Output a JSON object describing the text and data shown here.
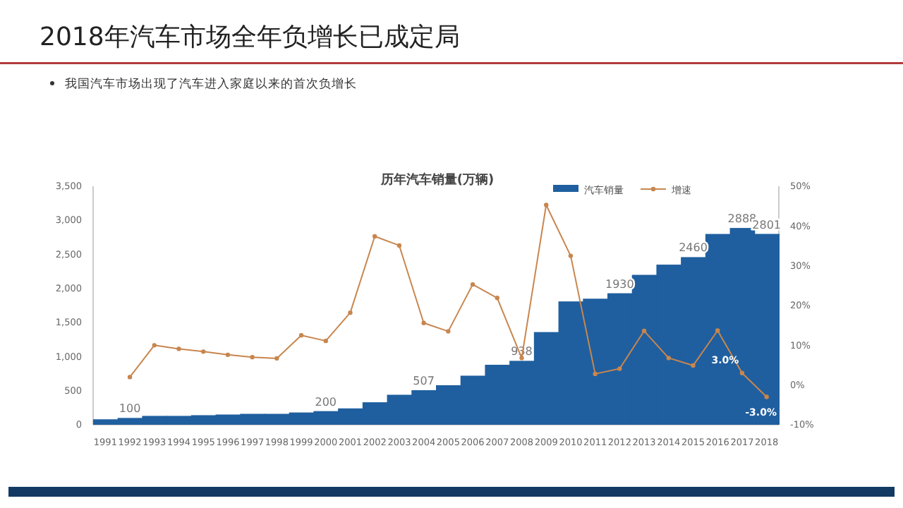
{
  "chart_data": {
    "type": "bar",
    "title": "2018年汽车市场全年负增长已成定局",
    "subtitle": "我国汽车市场出现了汽车进入家庭以来的首次负增长",
    "annotations": [
      "历年汽车销量(万辆)"
    ],
    "categories": [
      "1991",
      "1992",
      "1993",
      "1994",
      "1995",
      "1996",
      "1997",
      "1998",
      "1999",
      "2000",
      "2001",
      "2002",
      "2003",
      "2004",
      "2005",
      "2006",
      "2007",
      "2008",
      "2009",
      "2010",
      "2011",
      "2012",
      "2013",
      "2014",
      "2015",
      "2016",
      "2017",
      "2018"
    ],
    "series": [
      {
        "name": "汽车销量",
        "color": "#1f5f9f",
        "values": [
          80,
          100,
          130,
          130,
          140,
          150,
          160,
          160,
          180,
          200,
          240,
          330,
          440,
          507,
          580,
          720,
          880,
          938,
          1360,
          1810,
          1850,
          1930,
          2200,
          2350,
          2460,
          2800,
          2888,
          2801
        ],
        "value_labels": [
          null,
          "100",
          null,
          null,
          null,
          null,
          null,
          null,
          null,
          "200",
          null,
          null,
          null,
          "507",
          null,
          null,
          null,
          "938",
          null,
          null,
          null,
          "1930",
          null,
          null,
          "2460",
          null,
          "2888",
          "2801"
        ]
      },
      {
        "name": "增速",
        "type": "line",
        "axis": "y2",
        "color": "#c8864e",
        "marker": "circle",
        "values": [
          null,
          2.0,
          10.0,
          9.1,
          8.4,
          7.6,
          7.0,
          6.7,
          12.5,
          11.1,
          18.2,
          37.4,
          35.1,
          15.6,
          13.5,
          25.3,
          21.9,
          6.8,
          45.3,
          32.5,
          2.8,
          4.1,
          13.6,
          6.8,
          4.9,
          13.7,
          3.0,
          -3.0
        ],
        "value_labels": [
          null,
          null,
          null,
          null,
          null,
          null,
          null,
          null,
          null,
          null,
          null,
          null,
          null,
          null,
          null,
          null,
          null,
          null,
          null,
          null,
          null,
          null,
          null,
          null,
          null,
          null,
          "3.0%",
          "-3.0%"
        ]
      }
    ],
    "ylim": [
      0,
      3500
    ],
    "yticks": [
      0,
      {
        "value": 500,
        "label": "500"
      },
      {
        "value": 1000,
        "label": "1,000"
      },
      {
        "value": 1500,
        "label": "1,500"
      },
      {
        "value": 2000,
        "label": "2,000"
      },
      {
        "value": 2500,
        "label": "2,500"
      },
      {
        "value": 3000,
        "label": "3,000"
      },
      {
        "value": 3500,
        "label": "3,500"
      }
    ],
    "y2lim": [
      -10,
      50
    ],
    "y2ticks": [
      {
        "value": -10,
        "label": "-10%"
      },
      {
        "value": 0,
        "label": "0%"
      },
      {
        "value": 10,
        "label": "10%"
      },
      {
        "value": 20,
        "label": "20%"
      },
      {
        "value": 30,
        "label": "30%"
      },
      {
        "value": 40,
        "label": "40%"
      },
      {
        "value": 50,
        "label": "50%"
      }
    ],
    "legend": "top right",
    "grid": false
  }
}
